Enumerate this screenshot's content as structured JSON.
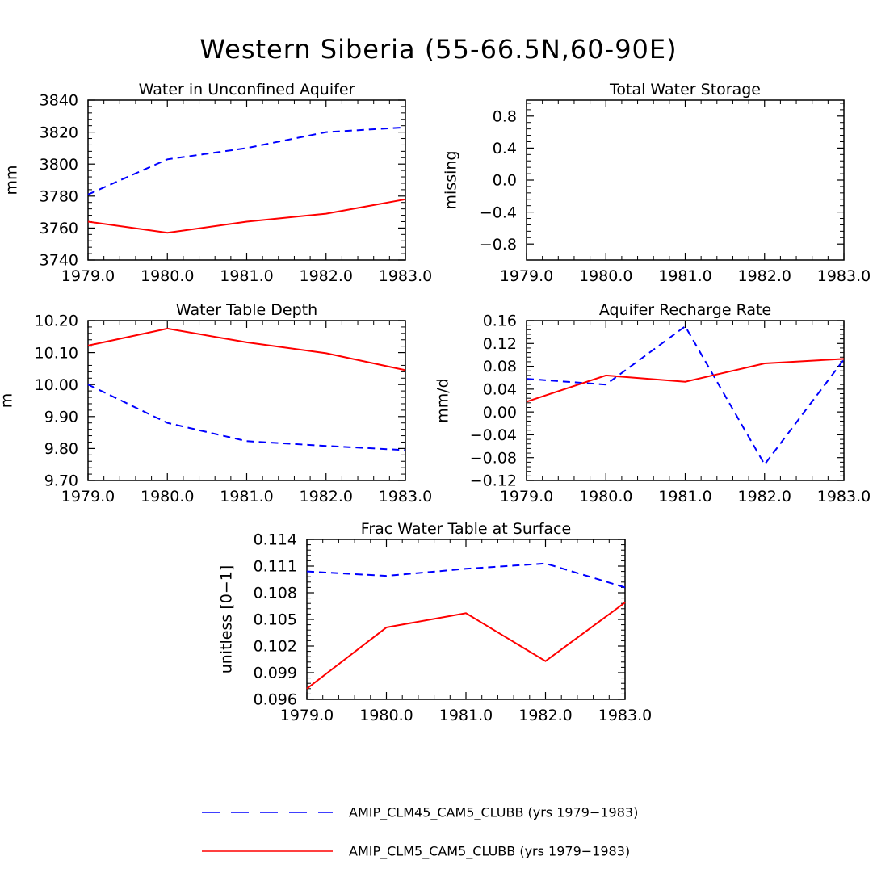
{
  "title": "Western Siberia (55-66.5N,60-90E)",
  "series_styles": [
    {
      "name": "AMIP_CLM45_CAM5_CLUBB",
      "color": "#0000ff",
      "dash": "dashed"
    },
    {
      "name": "AMIP_CLM5_CAM5_CLUBB",
      "color": "#ff0000",
      "dash": "solid"
    }
  ],
  "legend": [
    {
      "label": "AMIP_CLM45_CAM5_CLUBB (yrs 1979−1983)",
      "color": "#0000ff",
      "dash": "dashed"
    },
    {
      "label": "AMIP_CLM5_CAM5_CLUBB (yrs 1979−1983)",
      "color": "#ff0000",
      "dash": "solid"
    }
  ],
  "chart_data": [
    {
      "type": "line",
      "title": "Water in Unconfined Aquifer",
      "ylabel": "mm",
      "x": [
        1979,
        1980,
        1981,
        1982,
        1983
      ],
      "xticks": [
        "1979.0",
        "1980.0",
        "1981.0",
        "1982.0",
        "1983.0"
      ],
      "xlim": [
        1979,
        1983
      ],
      "ylim": [
        3740,
        3840
      ],
      "yticks": [
        3740,
        3760,
        3780,
        3800,
        3820,
        3840
      ],
      "ytick_labels": [
        "3740",
        "3760",
        "3780",
        "3800",
        "3820",
        "3840"
      ],
      "series": [
        {
          "name": "AMIP_CLM45_CAM5_CLUBB",
          "values": [
            3781,
            3803,
            3810,
            3820,
            3823
          ]
        },
        {
          "name": "AMIP_CLM5_CAM5_CLUBB",
          "values": [
            3764,
            3757,
            3764,
            3769,
            3778
          ]
        }
      ]
    },
    {
      "type": "line",
      "title": "Total Water Storage",
      "ylabel": "missing",
      "x": [
        1979,
        1980,
        1981,
        1982,
        1983
      ],
      "xticks": [
        "1979.0",
        "1980.0",
        "1981.0",
        "1982.0",
        "1983.0"
      ],
      "xlim": [
        1979,
        1983
      ],
      "ylim": [
        -1.0,
        1.0
      ],
      "yticks": [
        -0.8,
        -0.4,
        0.0,
        0.4,
        0.8
      ],
      "ytick_labels": [
        "−0.8",
        "−0.4",
        "0.0",
        "0.4",
        "0.8"
      ],
      "series": []
    },
    {
      "type": "line",
      "title": "Water Table Depth",
      "ylabel": "m",
      "x": [
        1979,
        1980,
        1981,
        1982,
        1983
      ],
      "xticks": [
        "1979.0",
        "1980.0",
        "1981.0",
        "1982.0",
        "1983.0"
      ],
      "xlim": [
        1979,
        1983
      ],
      "ylim": [
        9.7,
        10.2
      ],
      "yticks": [
        9.7,
        9.8,
        9.9,
        10.0,
        10.1,
        10.2
      ],
      "ytick_labels": [
        "9.70",
        "9.80",
        "9.90",
        "10.00",
        "10.10",
        "10.20"
      ],
      "series": [
        {
          "name": "AMIP_CLM45_CAM5_CLUBB",
          "values": [
            10.0,
            9.88,
            9.823,
            9.808,
            9.795
          ]
        },
        {
          "name": "AMIP_CLM5_CAM5_CLUBB",
          "values": [
            10.122,
            10.175,
            10.132,
            10.098,
            10.045
          ]
        }
      ]
    },
    {
      "type": "line",
      "title": "Aquifer Recharge Rate",
      "ylabel": "mm/d",
      "x": [
        1979,
        1980,
        1981,
        1982,
        1983
      ],
      "xticks": [
        "1979.0",
        "1980.0",
        "1981.0",
        "1982.0",
        "1983.0"
      ],
      "xlim": [
        1979,
        1983
      ],
      "ylim": [
        -0.12,
        0.16
      ],
      "yticks": [
        -0.12,
        -0.08,
        -0.04,
        0.0,
        0.04,
        0.08,
        0.12,
        0.16
      ],
      "ytick_labels": [
        "−0.12",
        "−0.08",
        "−0.04",
        "0.00",
        "0.04",
        "0.08",
        "0.12",
        "0.16"
      ],
      "series": [
        {
          "name": "AMIP_CLM45_CAM5_CLUBB",
          "values": [
            0.058,
            0.048,
            0.15,
            -0.092,
            0.092
          ]
        },
        {
          "name": "AMIP_CLM5_CAM5_CLUBB",
          "values": [
            0.018,
            0.064,
            0.053,
            0.085,
            0.093
          ]
        }
      ]
    },
    {
      "type": "line",
      "title": "Frac Water Table at Surface",
      "ylabel": "unitless [0−1]",
      "x": [
        1979,
        1980,
        1981,
        1982,
        1983
      ],
      "xticks": [
        "1979.0",
        "1980.0",
        "1981.0",
        "1982.0",
        "1983.0"
      ],
      "xlim": [
        1979,
        1983
      ],
      "ylim": [
        0.096,
        0.114
      ],
      "yticks": [
        0.096,
        0.099,
        0.102,
        0.105,
        0.108,
        0.111,
        0.114
      ],
      "ytick_labels": [
        "0.096",
        "0.099",
        "0.102",
        "0.105",
        "0.108",
        "0.111",
        "0.114"
      ],
      "series": [
        {
          "name": "AMIP_CLM45_CAM5_CLUBB",
          "values": [
            0.1104,
            0.1099,
            0.1107,
            0.1113,
            0.1086
          ]
        },
        {
          "name": "AMIP_CLM5_CAM5_CLUBB",
          "values": [
            0.0972,
            0.1041,
            0.1057,
            0.1003,
            0.1069
          ]
        }
      ]
    }
  ]
}
